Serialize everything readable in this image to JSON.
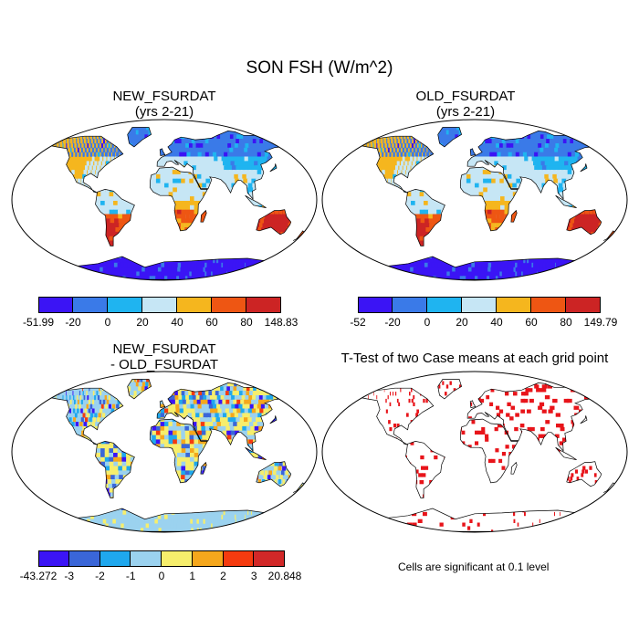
{
  "figure_title": "SON FSH (W/m^2)",
  "panels": {
    "new": {
      "title1": "NEW_FSURDAT",
      "title2": "(yrs 2-21)",
      "colorbar": {
        "colors": [
          "#3b14f5",
          "#3a7ae8",
          "#1fb4f0",
          "#c6e6f5",
          "#f5b61e",
          "#ee5613",
          "#cc2424"
        ],
        "labels": [
          "-51.99",
          "-20",
          "0",
          "20",
          "40",
          "60",
          "80",
          "148.83"
        ]
      }
    },
    "old": {
      "title1": "OLD_FSURDAT",
      "title2": "(yrs 2-21)",
      "colorbar": {
        "colors": [
          "#3b14f5",
          "#3a7ae8",
          "#1fb4f0",
          "#c6e6f5",
          "#f5b61e",
          "#ee5613",
          "#cc2424"
        ],
        "labels": [
          "-52",
          "-20",
          "0",
          "20",
          "40",
          "60",
          "80",
          "149.79"
        ]
      }
    },
    "diff": {
      "title1": "NEW_FSURDAT",
      "title2": "- OLD_FSURDAT",
      "colorbar": {
        "colors": [
          "#3b14f5",
          "#3a66d8",
          "#1fa8ee",
          "#9bd2ef",
          "#f6ee6c",
          "#f5a71c",
          "#f53b0f",
          "#d22828"
        ],
        "labels": [
          "-43.272",
          "-3",
          "-2",
          "-1",
          "0",
          "1",
          "2",
          "3",
          "20.848"
        ]
      }
    },
    "ttest": {
      "title1": "T-Test of two Case means at each grid point",
      "note": "Cells are significant at 0.1 level",
      "color": "#e8141a"
    }
  }
}
